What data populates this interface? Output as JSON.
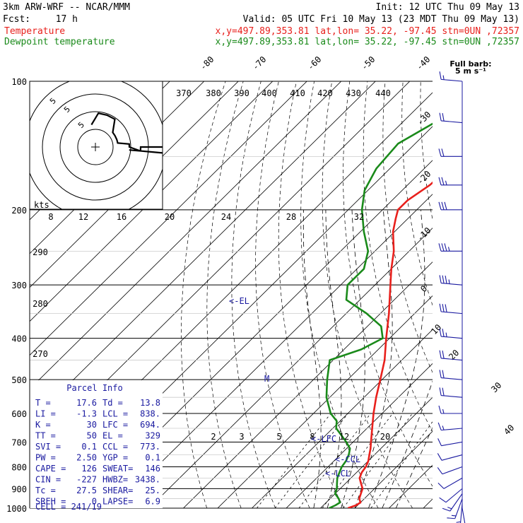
{
  "header": {
    "title": "3km ARW-WRF -- NCAR/MMM",
    "init": "Init: 12 UTC Thu 09 May 13",
    "fcst_label": "Fcst:",
    "fcst_value": "17 h",
    "valid": "Valid: 05 UTC Fri 10 May 13 (23 MDT Thu 09 May 13)"
  },
  "legend": {
    "temperature": {
      "name": "Temperature",
      "info": "x,y=497.89,353.81    lat,lon= 35.22, -97.45   stn=0UN ,72357",
      "color": "#e8201c"
    },
    "dewpoint": {
      "name": "Dewpoint temperature",
      "info": "x,y=497.89,353.81    lat,lon= 35.22, -97.45   stn=0UN ,72357",
      "color": "#1a8a1a"
    }
  },
  "barb_legend": {
    "line1": "Full barb:",
    "line2": "5 m s⁻¹"
  },
  "hodo": {
    "kts_label": "kts",
    "ring_labels": [
      "5",
      "5",
      "5"
    ]
  },
  "parcel": {
    "title": "Parcel Info",
    "rows": [
      [
        "T  =",
        "17.6",
        "Td =",
        "13.8"
      ],
      [
        "LI =",
        "-1.3",
        "LCL =",
        "838."
      ],
      [
        "K  =",
        "30",
        "LFC =",
        "694."
      ],
      [
        "TT =",
        "50",
        "EL  =",
        "329"
      ],
      [
        "SVI =",
        "0.1",
        "CCL =",
        "773."
      ],
      [
        "PW =",
        "2.50",
        "YGP =",
        "0.1"
      ],
      [
        "CAPE =",
        "126",
        "SWEAT=",
        "146"
      ],
      [
        "CIN =",
        "-227",
        "HWBZ=",
        "3438."
      ],
      [
        "Tc =",
        "27.5",
        "SHEAR=",
        "25."
      ],
      [
        "SREH =",
        "0",
        "LAPSE=",
        "6.9"
      ]
    ],
    "cell": "CELL = 241/19"
  },
  "chart_data": {
    "type": "line",
    "title": "",
    "ylabel": "",
    "xlabel": "",
    "pressure_levels": [
      "100",
      "200",
      "300",
      "400",
      "500",
      "600",
      "700",
      "800",
      "900",
      "1000"
    ],
    "isotherm_labels": [
      "-80",
      "-70",
      "-60",
      "-50",
      "-40",
      "-30",
      "-20",
      "-10",
      "0",
      "10",
      "20",
      "30",
      "40"
    ],
    "theta_labels": [
      "370",
      "380",
      "390",
      "400",
      "410",
      "420",
      "430",
      "440"
    ],
    "theta_left_labels": [
      "290",
      "280",
      "270"
    ],
    "mixing_ratio_labels": [
      "2",
      "3",
      "5",
      "8",
      "12",
      "20"
    ],
    "thetae_top_labels": [
      "8",
      "12",
      "16",
      "20",
      "24",
      "28",
      "32"
    ],
    "annotations": [
      "<-EL",
      "<-LFC",
      "<-CCL",
      "<-LCL",
      "M"
    ],
    "series": [
      {
        "name": "Temperature",
        "points": [
          [
            1000,
            18.0
          ],
          [
            985,
            19.5
          ],
          [
            970,
            20.0
          ],
          [
            950,
            18.5
          ],
          [
            925,
            17.5
          ],
          [
            900,
            16.5
          ],
          [
            875,
            14.5
          ],
          [
            850,
            12.5
          ],
          [
            825,
            11.5
          ],
          [
            800,
            11.0
          ],
          [
            775,
            10.0
          ],
          [
            750,
            8.5
          ],
          [
            725,
            7.0
          ],
          [
            700,
            5.2
          ],
          [
            650,
            1.5
          ],
          [
            600,
            -2.5
          ],
          [
            550,
            -6.5
          ],
          [
            500,
            -10.5
          ],
          [
            450,
            -15.0
          ],
          [
            400,
            -21.0
          ],
          [
            350,
            -27.5
          ],
          [
            300,
            -35.5
          ],
          [
            275,
            -40.0
          ],
          [
            250,
            -44.5
          ],
          [
            225,
            -50.5
          ],
          [
            210,
            -53.5
          ],
          [
            200,
            -55.5
          ],
          [
            190,
            -55.5
          ],
          [
            175,
            -53.5
          ],
          [
            150,
            -52.5
          ],
          [
            130,
            -50.0
          ],
          [
            115,
            -49.0
          ],
          [
            100,
            -48.5
          ]
        ]
      },
      {
        "name": "Dewpoint temperature",
        "points": [
          [
            1000,
            12.5
          ],
          [
            985,
            13.5
          ],
          [
            970,
            14.0
          ],
          [
            950,
            12.5
          ],
          [
            925,
            10.0
          ],
          [
            900,
            9.0
          ],
          [
            875,
            7.5
          ],
          [
            850,
            6.0
          ],
          [
            825,
            5.0
          ],
          [
            800,
            4.0
          ],
          [
            775,
            3.5
          ],
          [
            750,
            2.5
          ],
          [
            725,
            1.0
          ],
          [
            700,
            -2.0
          ],
          [
            650,
            -9.0
          ],
          [
            625,
            -11.0
          ],
          [
            600,
            -15.0
          ],
          [
            550,
            -21.0
          ],
          [
            500,
            -26.0
          ],
          [
            450,
            -31.0
          ],
          [
            425,
            -25.0
          ],
          [
            400,
            -22.0
          ],
          [
            375,
            -26.0
          ],
          [
            350,
            -34.0
          ],
          [
            325,
            -44.0
          ],
          [
            300,
            -48.0
          ],
          [
            275,
            -48.0
          ],
          [
            250,
            -52.0
          ],
          [
            225,
            -59.0
          ],
          [
            200,
            -66.0
          ],
          [
            180,
            -71.0
          ],
          [
            160,
            -74.0
          ],
          [
            140,
            -75.0
          ],
          [
            120,
            -69.0
          ],
          [
            100,
            -63.0
          ]
        ]
      }
    ],
    "wind_barbs": [
      {
        "p": 1000,
        "dir": 170,
        "spd": 10
      },
      {
        "p": 975,
        "dir": 185,
        "spd": 15
      },
      {
        "p": 950,
        "dir": 200,
        "spd": 15
      },
      {
        "p": 925,
        "dir": 215,
        "spd": 15
      },
      {
        "p": 900,
        "dir": 230,
        "spd": 10
      },
      {
        "p": 850,
        "dir": 240,
        "spd": 10
      },
      {
        "p": 800,
        "dir": 250,
        "spd": 10
      },
      {
        "p": 750,
        "dir": 255,
        "spd": 10
      },
      {
        "p": 700,
        "dir": 260,
        "spd": 10
      },
      {
        "p": 650,
        "dir": 265,
        "spd": 15
      },
      {
        "p": 600,
        "dir": 270,
        "spd": 15
      },
      {
        "p": 550,
        "dir": 275,
        "spd": 20
      },
      {
        "p": 500,
        "dir": 275,
        "spd": 20
      },
      {
        "p": 450,
        "dir": 275,
        "spd": 20
      },
      {
        "p": 400,
        "dir": 275,
        "spd": 25
      },
      {
        "p": 350,
        "dir": 275,
        "spd": 30
      },
      {
        "p": 300,
        "dir": 275,
        "spd": 35
      },
      {
        "p": 250,
        "dir": 270,
        "spd": 35
      },
      {
        "p": 200,
        "dir": 270,
        "spd": 30
      },
      {
        "p": 175,
        "dir": 270,
        "spd": 25
      },
      {
        "p": 150,
        "dir": 270,
        "spd": 20
      },
      {
        "p": 125,
        "dir": 275,
        "spd": 20
      },
      {
        "p": 100,
        "dir": 275,
        "spd": 15
      }
    ]
  }
}
